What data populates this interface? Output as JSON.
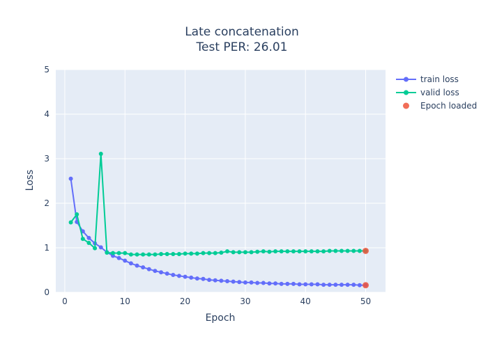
{
  "chart_data": {
    "type": "line",
    "title": "Late concatenation",
    "subtitle": "Test PER: 26.01",
    "xlabel": "Epoch",
    "ylabel": "Loss",
    "xlim": [
      -1.5,
      53.3
    ],
    "ylim": [
      0,
      5
    ],
    "xticks": [
      0,
      10,
      20,
      30,
      40,
      50
    ],
    "yticks": [
      0,
      1,
      2,
      3,
      4,
      5
    ],
    "grid": true,
    "legend_position": "top-right",
    "background_color": "#e5ecf6",
    "series": [
      {
        "name": "train loss",
        "mode": "lines+markers",
        "color": "#636efa",
        "x": [
          1,
          2,
          3,
          4,
          5,
          6,
          7,
          8,
          9,
          10,
          11,
          12,
          13,
          14,
          15,
          16,
          17,
          18,
          19,
          20,
          21,
          22,
          23,
          24,
          25,
          26,
          27,
          28,
          29,
          30,
          31,
          32,
          33,
          34,
          35,
          36,
          37,
          38,
          39,
          40,
          41,
          42,
          43,
          44,
          45,
          46,
          47,
          48,
          49,
          50
        ],
        "y": [
          2.55,
          1.58,
          1.37,
          1.22,
          1.1,
          1.01,
          0.9,
          0.82,
          0.77,
          0.71,
          0.65,
          0.6,
          0.56,
          0.52,
          0.48,
          0.45,
          0.42,
          0.39,
          0.37,
          0.35,
          0.33,
          0.31,
          0.3,
          0.28,
          0.27,
          0.26,
          0.25,
          0.24,
          0.23,
          0.22,
          0.22,
          0.21,
          0.21,
          0.2,
          0.2,
          0.19,
          0.19,
          0.19,
          0.18,
          0.18,
          0.18,
          0.18,
          0.17,
          0.17,
          0.17,
          0.17,
          0.17,
          0.17,
          0.16,
          0.16
        ]
      },
      {
        "name": "valid loss",
        "mode": "lines+markers",
        "color": "#00cc96",
        "x": [
          1,
          2,
          3,
          4,
          5,
          6,
          7,
          8,
          9,
          10,
          11,
          12,
          13,
          14,
          15,
          16,
          17,
          18,
          19,
          20,
          21,
          22,
          23,
          24,
          25,
          26,
          27,
          28,
          29,
          30,
          31,
          32,
          33,
          34,
          35,
          36,
          37,
          38,
          39,
          40,
          41,
          42,
          43,
          44,
          45,
          46,
          47,
          48,
          49,
          50
        ],
        "y": [
          1.57,
          1.75,
          1.2,
          1.11,
          0.99,
          3.11,
          0.89,
          0.88,
          0.88,
          0.88,
          0.85,
          0.85,
          0.85,
          0.85,
          0.85,
          0.86,
          0.86,
          0.86,
          0.86,
          0.87,
          0.87,
          0.87,
          0.88,
          0.88,
          0.88,
          0.89,
          0.92,
          0.9,
          0.9,
          0.9,
          0.9,
          0.91,
          0.92,
          0.91,
          0.92,
          0.92,
          0.92,
          0.92,
          0.92,
          0.92,
          0.92,
          0.92,
          0.92,
          0.93,
          0.93,
          0.93,
          0.93,
          0.93,
          0.93,
          0.93
        ]
      },
      {
        "name": "Epoch loaded",
        "mode": "markers",
        "color": "#ef553b",
        "x": [
          50,
          50
        ],
        "y": [
          0.93,
          0.16
        ]
      }
    ]
  }
}
